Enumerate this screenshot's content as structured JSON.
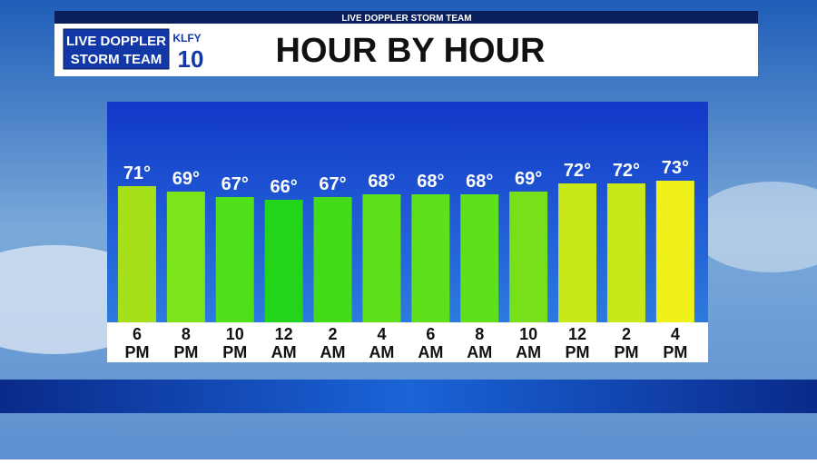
{
  "header": {
    "banner": "LIVE DOPPLER STORM TEAM",
    "logo_line1": "LIVE DOPPLER",
    "logo_line2": "STORM TEAM",
    "station": "KLFY",
    "channel": "10"
  },
  "chart_data": {
    "type": "bar",
    "title": "HOUR BY HOUR",
    "categories": [
      [
        "6",
        "PM"
      ],
      [
        "8",
        "PM"
      ],
      [
        "10",
        "PM"
      ],
      [
        "12",
        "AM"
      ],
      [
        "2",
        "AM"
      ],
      [
        "4",
        "AM"
      ],
      [
        "6",
        "AM"
      ],
      [
        "8",
        "AM"
      ],
      [
        "10",
        "AM"
      ],
      [
        "12",
        "PM"
      ],
      [
        "2",
        "PM"
      ],
      [
        "4",
        "PM"
      ]
    ],
    "values": [
      71,
      69,
      67,
      66,
      67,
      68,
      68,
      68,
      69,
      72,
      72,
      73
    ],
    "value_labels": [
      "71°",
      "69°",
      "67°",
      "66°",
      "67°",
      "68°",
      "68°",
      "68°",
      "69°",
      "72°",
      "72°",
      "73°"
    ],
    "colors": [
      "#a6e01a",
      "#7be41a",
      "#4fe01a",
      "#22d41a",
      "#44dc1a",
      "#5ee01a",
      "#5ee01a",
      "#5ee01a",
      "#78e01a",
      "#c8e81a",
      "#c8e81a",
      "#f0f01a"
    ],
    "ylim": [
      21,
      102
    ]
  }
}
